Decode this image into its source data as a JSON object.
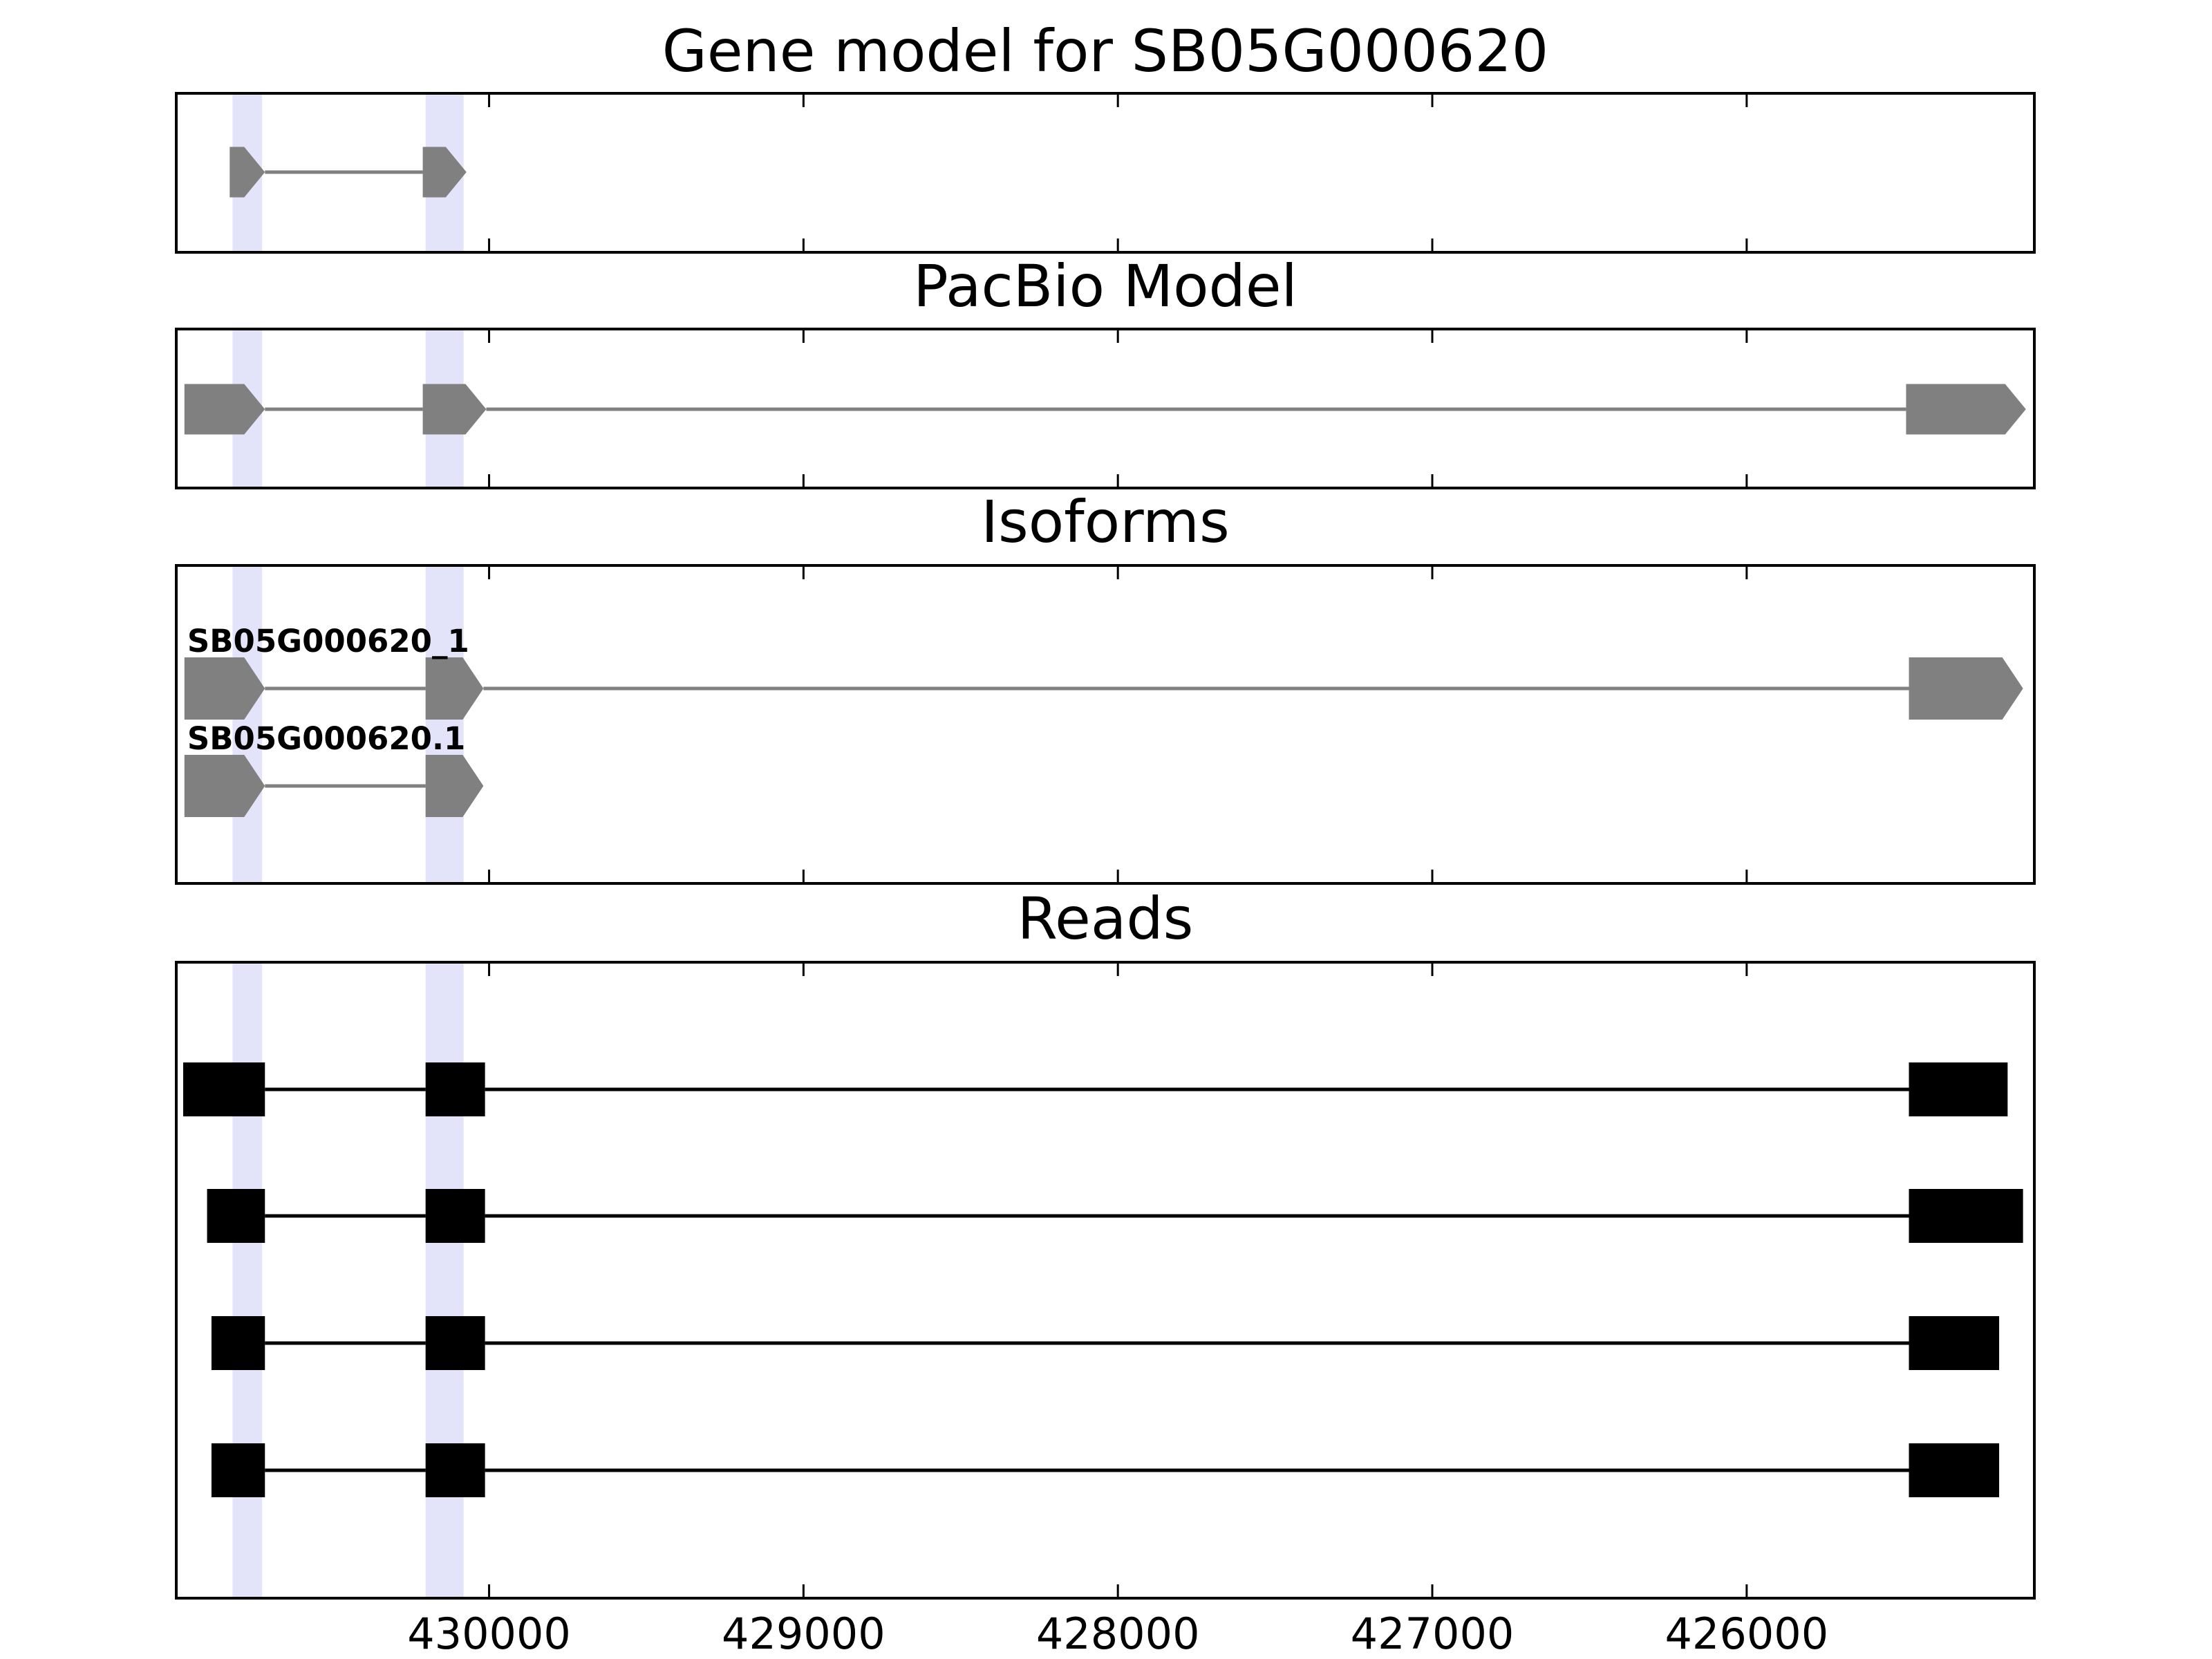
{
  "chart_data": [
    {
      "type": "gene-track",
      "title": "Gene model for SB05G000620",
      "shape": "arrow",
      "color": "#808080",
      "xlim": [
        430995,
        425085
      ],
      "highlights": [
        [
          430816,
          430722
        ],
        [
          430202,
          430081
        ]
      ],
      "highlight_color": "#e3e3f9",
      "transcripts": [
        {
          "exons": [
            [
              430825,
              430713
            ],
            [
              430211,
              430072
            ]
          ]
        }
      ]
    },
    {
      "type": "gene-track",
      "title": "PacBio Model",
      "shape": "arrow",
      "color": "#808080",
      "xlim": [
        430995,
        425085
      ],
      "highlights": [
        [
          430816,
          430722
        ],
        [
          430202,
          430081
        ]
      ],
      "highlight_color": "#e3e3f9",
      "transcripts": [
        {
          "exons": [
            [
              430969,
              430713
            ],
            [
              430211,
              430009
            ],
            [
              425493,
              425112
            ]
          ]
        }
      ]
    },
    {
      "type": "gene-track",
      "title": "Isoforms",
      "shape": "arrow",
      "color": "#808080",
      "xlim": [
        430995,
        425085
      ],
      "highlights": [
        [
          430816,
          430722
        ],
        [
          430202,
          430081
        ]
      ],
      "highlight_color": "#e3e3f9",
      "transcripts": [
        {
          "name": "SB05G000620_1",
          "exons": [
            [
              430969,
              430713
            ],
            [
              430202,
              430018
            ],
            [
              425484,
              425121
            ]
          ]
        },
        {
          "name": "SB05G000620.1",
          "exons": [
            [
              430969,
              430713
            ],
            [
              430202,
              430018
            ]
          ]
        }
      ]
    },
    {
      "type": "gene-track",
      "title": "Reads",
      "shape": "box",
      "color": "#000000",
      "xlim": [
        430995,
        425085
      ],
      "highlights": [
        [
          430816,
          430722
        ],
        [
          430202,
          430081
        ]
      ],
      "highlight_color": "#e3e3f9",
      "xticks": [
        430000,
        429000,
        428000,
        427000,
        426000
      ],
      "transcripts": [
        {
          "exons": [
            [
              430973,
              430713
            ],
            [
              430202,
              430013
            ],
            [
              425484,
              425170
            ]
          ]
        },
        {
          "exons": [
            [
              430897,
              430713
            ],
            [
              430202,
              430013
            ],
            [
              425484,
              425121
            ]
          ]
        },
        {
          "exons": [
            [
              430883,
              430713
            ],
            [
              430202,
              430013
            ],
            [
              425484,
              425197
            ]
          ]
        },
        {
          "exons": [
            [
              430883,
              430713
            ],
            [
              430202,
              430013
            ],
            [
              425484,
              425197
            ]
          ]
        }
      ]
    }
  ]
}
